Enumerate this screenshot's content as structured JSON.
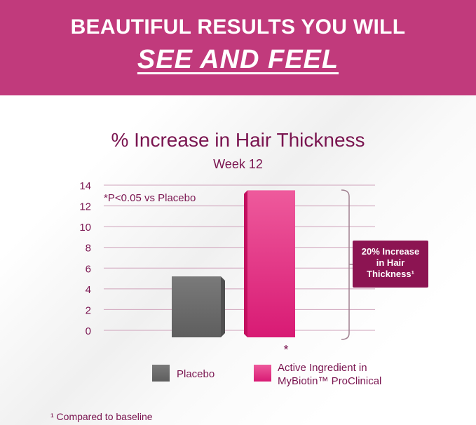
{
  "banner": {
    "line1": "BEAUTIFUL RESULTS YOU WILL",
    "line2": "SEE AND FEEL"
  },
  "colors": {
    "banner": "#c13a7c",
    "text": "#7a1550",
    "placebo": "#6e6e6e",
    "active": "#e0287e",
    "callout": "#8c1452"
  },
  "chart_data": {
    "type": "bar",
    "title": "% Increase in Hair Thickness",
    "subtitle": "Week 12",
    "categories": [
      "Placebo",
      "Active Ingredient in MyBiotin™ ProClinical"
    ],
    "values": [
      5.2,
      13.5
    ],
    "ylim": [
      0,
      14
    ],
    "yticks": [
      0,
      2,
      4,
      6,
      8,
      10,
      12,
      14
    ],
    "grid": true,
    "annotation": "*P<0.05 vs Placebo",
    "significance_marker": "*",
    "callout": [
      "20% Increase",
      "in Hair",
      "Thickness¹"
    ],
    "legend": {
      "placement": "bottom",
      "entries": [
        {
          "label": "Placebo"
        },
        {
          "label_line1": "Active Ingredient in",
          "label_line2": "MyBiotin™ ProClinical"
        }
      ]
    }
  },
  "footnote": "¹ Compared to baseline"
}
